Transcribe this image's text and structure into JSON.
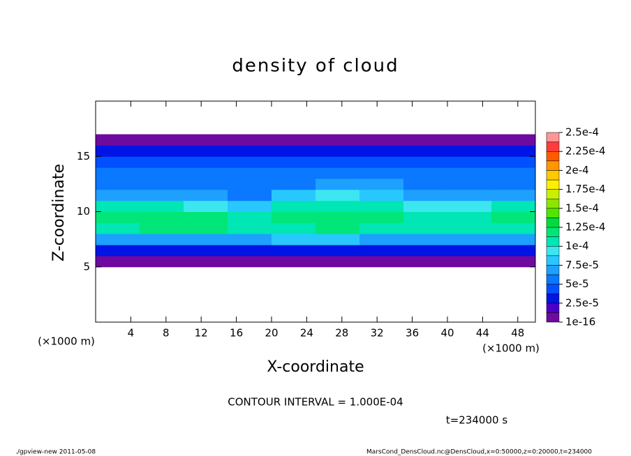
{
  "chart_data": {
    "type": "contour",
    "title": "density of cloud",
    "xlabel": "X-coordinate",
    "ylabel": "Z-coordinate",
    "x_unit": "(×1000 m)",
    "y_unit": "(×1000 m)",
    "contour_note": "CONTOUR INTERVAL = 1.000E-04",
    "time_note": "t=234000 s",
    "footer_left": "./gpview-new  2011-05-08",
    "footer_right": "MarsCond_DensCloud.nc@DensCloud,x=0:50000,z=0:20000,t=234000",
    "xlim": [
      0,
      50
    ],
    "ylim": [
      0,
      20
    ],
    "xticks": [
      4,
      8,
      12,
      16,
      20,
      24,
      28,
      32,
      36,
      40,
      44,
      48
    ],
    "yticks": [
      5,
      10,
      15
    ],
    "x_edges": [
      0,
      5,
      10,
      15,
      20,
      25,
      30,
      35,
      40,
      45,
      50
    ],
    "z_edges": [
      0,
      1,
      2,
      3,
      4,
      5,
      6,
      7,
      8,
      9,
      10,
      11,
      12,
      13,
      14,
      15,
      16,
      17,
      18,
      19,
      20
    ],
    "values": [
      [
        null,
        null,
        null,
        null,
        null,
        null,
        null,
        null,
        null,
        null
      ],
      [
        null,
        null,
        null,
        null,
        null,
        null,
        null,
        null,
        null,
        null
      ],
      [
        null,
        null,
        null,
        null,
        null,
        null,
        null,
        null,
        null,
        null
      ],
      [
        null,
        null,
        null,
        null,
        null,
        null,
        null,
        null,
        null,
        null
      ],
      [
        null,
        null,
        null,
        null,
        null,
        null,
        null,
        null,
        null,
        null
      ],
      [
        1e-06,
        1e-06,
        1e-06,
        1e-06,
        1e-06,
        1e-06,
        1e-06,
        1e-06,
        1e-06,
        1e-06
      ],
      [
        3e-05,
        3e-05,
        3e-05,
        3e-05,
        3e-05,
        3e-05,
        3e-05,
        3e-05,
        3e-05,
        3e-05
      ],
      [
        7e-05,
        7e-05,
        7e-05,
        7e-05,
        8e-05,
        8e-05,
        7e-05,
        7e-05,
        7e-05,
        7e-05
      ],
      [
        0.00011,
        0.00012,
        0.00012,
        0.00011,
        0.00011,
        0.00012,
        0.00011,
        0.00011,
        0.00011,
        0.00011
      ],
      [
        0.00012,
        0.00012,
        0.00012,
        0.00011,
        0.00012,
        0.00012,
        0.00012,
        0.00011,
        0.00011,
        0.00012
      ],
      [
        0.0001,
        0.0001,
        9e-05,
        8e-05,
        0.00011,
        0.00011,
        0.0001,
        9e-05,
        9e-05,
        0.0001
      ],
      [
        7e-05,
        7e-05,
        7e-05,
        6e-05,
        8e-05,
        9e-05,
        8e-05,
        7e-05,
        7e-05,
        7e-05
      ],
      [
        6e-05,
        6e-05,
        6e-05,
        5e-05,
        6e-05,
        7e-05,
        7e-05,
        6e-05,
        6e-05,
        6e-05
      ],
      [
        5e-05,
        5e-05,
        6e-05,
        5e-05,
        5e-05,
        5e-05,
        6e-05,
        5e-05,
        5e-05,
        5e-05
      ],
      [
        4.5e-05,
        4.5e-05,
        4.5e-05,
        4.5e-05,
        4.5e-05,
        4.5e-05,
        4.5e-05,
        4.5e-05,
        4.5e-05,
        4.5e-05
      ],
      [
        3e-05,
        3e-05,
        3e-05,
        3e-05,
        3e-05,
        3e-05,
        3e-05,
        3e-05,
        3e-05,
        3e-05
      ],
      [
        1e-06,
        1e-06,
        1e-06,
        1e-06,
        1e-06,
        1e-06,
        1e-06,
        1e-06,
        1e-06,
        1e-06
      ],
      [
        null,
        null,
        null,
        null,
        null,
        null,
        null,
        null,
        null,
        null
      ],
      [
        null,
        null,
        null,
        null,
        null,
        null,
        null,
        null,
        null,
        null
      ],
      [
        null,
        null,
        null,
        null,
        null,
        null,
        null,
        null,
        null,
        null
      ]
    ],
    "levels": [
      1e-16,
      1.25e-05,
      2.5e-05,
      3.75e-05,
      5e-05,
      6.25e-05,
      7.5e-05,
      8.75e-05,
      0.0001,
      0.0001125,
      0.000125,
      0.0001375,
      0.00015,
      0.0001625,
      0.000175,
      0.0001875,
      0.0002,
      0.0002125,
      0.000225,
      0.0002375,
      0.00025
    ],
    "colors": [
      "#6e0aa0",
      "#4a00c8",
      "#0014e6",
      "#0050ff",
      "#0a78ff",
      "#1ea0ff",
      "#28c8ff",
      "#3ce6f0",
      "#00e6b4",
      "#00e678",
      "#00dc3c",
      "#50e600",
      "#8ce600",
      "#c8f000",
      "#fff000",
      "#ffc800",
      "#ff9600",
      "#ff5a00",
      "#ff3c3c",
      "#ff9696"
    ],
    "colorbar_ticks": [
      {
        "value": 1e-16,
        "label": "1e-16"
      },
      {
        "value": 2.5e-05,
        "label": "2.5e-5"
      },
      {
        "value": 5e-05,
        "label": "5e-5"
      },
      {
        "value": 7.5e-05,
        "label": "7.5e-5"
      },
      {
        "value": 0.0001,
        "label": "1e-4"
      },
      {
        "value": 0.000125,
        "label": "1.25e-4"
      },
      {
        "value": 0.00015,
        "label": "1.5e-4"
      },
      {
        "value": 0.000175,
        "label": "1.75e-4"
      },
      {
        "value": 0.0002,
        "label": "2e-4"
      },
      {
        "value": 0.000225,
        "label": "2.25e-4"
      },
      {
        "value": 0.00025,
        "label": "2.5e-4"
      }
    ]
  }
}
